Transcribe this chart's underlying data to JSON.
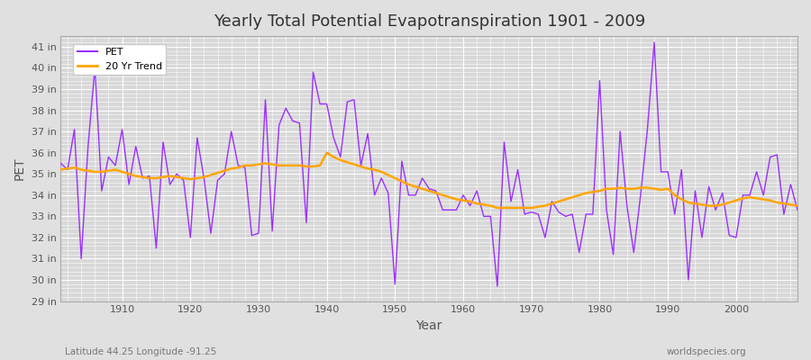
{
  "title": "Yearly Total Potential Evapotranspiration 1901 - 2009",
  "xlabel": "Year",
  "ylabel": "PET",
  "subtitle_left": "Latitude 44.25 Longitude -91.25",
  "subtitle_right": "worldspecies.org",
  "pet_color": "#9B30FF",
  "trend_color": "#FFA500",
  "fig_bg_color": "#E0E0E0",
  "plot_bg_color": "#D8D8D8",
  "grid_color": "#FFFFFF",
  "ylim": [
    29,
    41.5
  ],
  "yticks": [
    29,
    30,
    31,
    32,
    33,
    34,
    35,
    36,
    37,
    38,
    39,
    40,
    41
  ],
  "xlim": [
    1901,
    2009
  ],
  "xticks": [
    1910,
    1920,
    1930,
    1940,
    1950,
    1960,
    1970,
    1980,
    1990,
    2000
  ],
  "years": [
    1901,
    1902,
    1903,
    1904,
    1905,
    1906,
    1907,
    1908,
    1909,
    1910,
    1911,
    1912,
    1913,
    1914,
    1915,
    1916,
    1917,
    1918,
    1919,
    1920,
    1921,
    1922,
    1923,
    1924,
    1925,
    1926,
    1927,
    1928,
    1929,
    1930,
    1931,
    1932,
    1933,
    1934,
    1935,
    1936,
    1937,
    1938,
    1939,
    1940,
    1941,
    1942,
    1943,
    1944,
    1945,
    1946,
    1947,
    1948,
    1949,
    1950,
    1951,
    1952,
    1953,
    1954,
    1955,
    1956,
    1957,
    1958,
    1959,
    1960,
    1961,
    1962,
    1963,
    1964,
    1965,
    1966,
    1967,
    1968,
    1969,
    1970,
    1971,
    1972,
    1973,
    1974,
    1975,
    1976,
    1977,
    1978,
    1979,
    1980,
    1981,
    1982,
    1983,
    1984,
    1985,
    1986,
    1987,
    1988,
    1989,
    1990,
    1991,
    1992,
    1993,
    1994,
    1995,
    1996,
    1997,
    1998,
    1999,
    2000,
    2001,
    2002,
    2003,
    2004,
    2005,
    2006,
    2007,
    2008,
    2009
  ],
  "pet_values": [
    35.5,
    35.2,
    37.1,
    31.0,
    36.3,
    40.0,
    34.2,
    35.8,
    35.4,
    37.1,
    34.5,
    36.3,
    34.8,
    34.9,
    31.5,
    36.5,
    34.5,
    35.0,
    34.7,
    32.0,
    36.7,
    34.8,
    32.2,
    34.7,
    35.0,
    37.0,
    35.4,
    35.3,
    32.1,
    32.2,
    38.5,
    32.3,
    37.3,
    38.1,
    37.5,
    37.4,
    32.7,
    39.8,
    38.3,
    38.3,
    36.7,
    35.8,
    38.4,
    38.5,
    35.4,
    36.9,
    34.0,
    34.8,
    34.1,
    29.8,
    35.6,
    34.0,
    34.0,
    34.8,
    34.3,
    34.2,
    33.3,
    33.3,
    33.3,
    34.0,
    33.5,
    34.2,
    33.0,
    33.0,
    29.7,
    36.5,
    33.7,
    35.2,
    33.1,
    33.2,
    33.1,
    32.0,
    33.7,
    33.2,
    33.0,
    33.1,
    31.3,
    33.1,
    33.1,
    39.4,
    33.3,
    31.2,
    37.0,
    33.5,
    31.3,
    34.0,
    37.1,
    41.2,
    35.1,
    35.1,
    33.1,
    35.2,
    30.0,
    34.2,
    32.0,
    34.4,
    33.3,
    34.1,
    32.1,
    32.0,
    34.0,
    34.0,
    35.1,
    34.0,
    35.8,
    35.9,
    33.1,
    34.5,
    33.3
  ],
  "trend_values": [
    35.2,
    35.25,
    35.3,
    35.2,
    35.15,
    35.1,
    35.1,
    35.15,
    35.2,
    35.1,
    35.0,
    34.9,
    34.85,
    34.8,
    34.8,
    34.85,
    34.9,
    34.85,
    34.8,
    34.75,
    34.8,
    34.85,
    34.95,
    35.05,
    35.15,
    35.25,
    35.3,
    35.4,
    35.4,
    35.45,
    35.5,
    35.45,
    35.4,
    35.4,
    35.4,
    35.4,
    35.35,
    35.35,
    35.4,
    36.0,
    35.8,
    35.65,
    35.55,
    35.45,
    35.35,
    35.25,
    35.2,
    35.1,
    34.95,
    34.8,
    34.65,
    34.5,
    34.4,
    34.3,
    34.2,
    34.1,
    34.0,
    33.9,
    33.8,
    33.75,
    33.7,
    33.6,
    33.55,
    33.5,
    33.4,
    33.4,
    33.4,
    33.4,
    33.4,
    33.4,
    33.45,
    33.5,
    33.6,
    33.7,
    33.8,
    33.9,
    34.0,
    34.1,
    34.15,
    34.2,
    34.3,
    34.3,
    34.35,
    34.3,
    34.3,
    34.35,
    34.35,
    34.3,
    34.25,
    34.3,
    34.0,
    33.8,
    33.65,
    33.6,
    33.55,
    33.5,
    33.5,
    33.55,
    33.65,
    33.75,
    33.85,
    33.9,
    33.85,
    33.8,
    33.75,
    33.65,
    33.6,
    33.55,
    33.5
  ]
}
